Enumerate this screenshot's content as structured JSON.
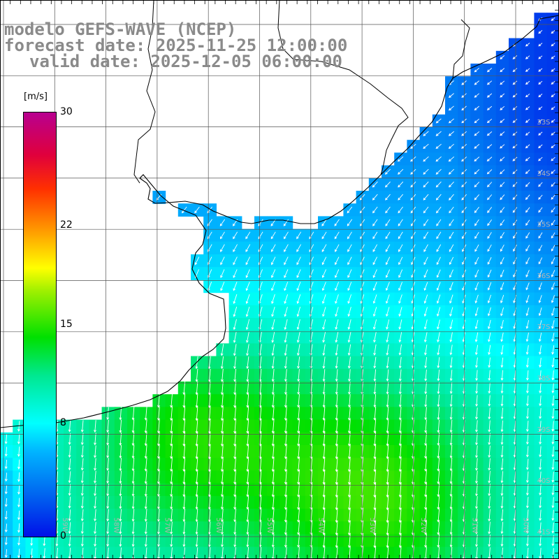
{
  "title": {
    "line1": "modelo GEFS-WAVE (NCEP)",
    "line2": "forecast date: 2025-11-25 12:00:00",
    "line3": "valid date: 2025-12-05 06:00:00"
  },
  "colorbar": {
    "unit": "[m/s]",
    "min": 0,
    "max": 30,
    "ticks": [
      {
        "label": "30",
        "value": 30
      },
      {
        "label": "22",
        "value": 22
      },
      {
        "label": "15",
        "value": 15
      },
      {
        "label": "8",
        "value": 8
      },
      {
        "label": "0",
        "value": 0
      }
    ]
  },
  "map": {
    "lat_labels": [
      "33S",
      "34S",
      "35S",
      "36S",
      "37S",
      "38S",
      "39S",
      "40S",
      "41S"
    ],
    "lon_labels": [
      "59W",
      "58W",
      "57W",
      "56W",
      "55W",
      "54W",
      "53W",
      "52W",
      "51W",
      "50W"
    ],
    "arrow_color": "#ffffff",
    "coast_color": "#000000",
    "grid_color": "#555555"
  }
}
